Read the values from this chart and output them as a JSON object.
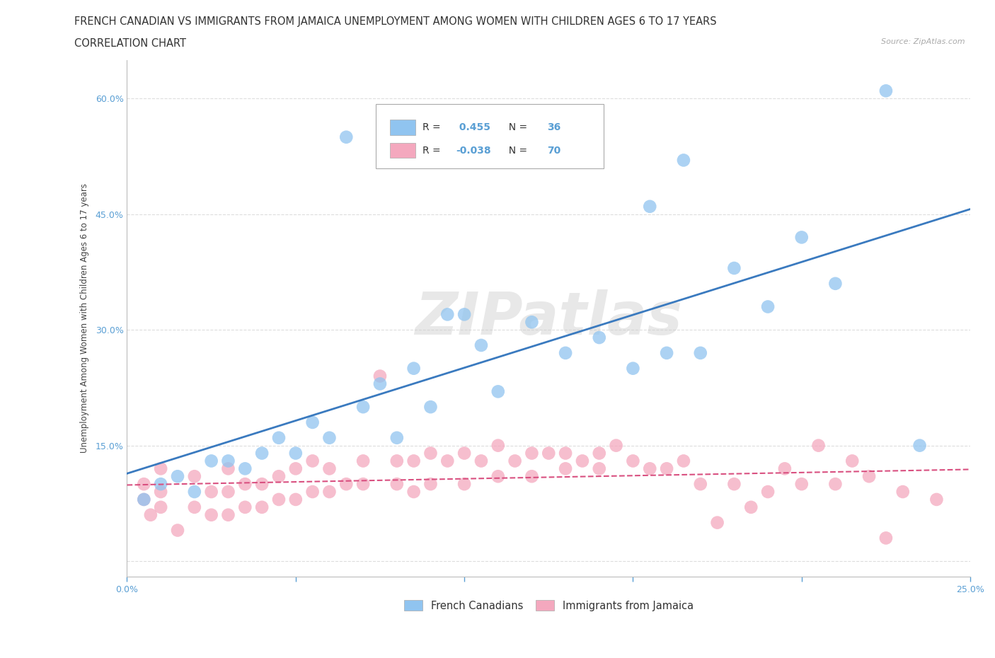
{
  "title_line1": "FRENCH CANADIAN VS IMMIGRANTS FROM JAMAICA UNEMPLOYMENT AMONG WOMEN WITH CHILDREN AGES 6 TO 17 YEARS",
  "title_line2": "CORRELATION CHART",
  "source": "Source: ZipAtlas.com",
  "ylabel_label": "Unemployment Among Women with Children Ages 6 to 17 years",
  "x_min": 0.0,
  "x_max": 0.25,
  "y_min": -0.02,
  "y_max": 0.65,
  "x_ticks": [
    0.0,
    0.05,
    0.1,
    0.15,
    0.2,
    0.25
  ],
  "x_tick_labels": [
    "0.0%",
    "",
    "",
    "",
    "",
    "25.0%"
  ],
  "y_ticks": [
    0.0,
    0.15,
    0.3,
    0.45,
    0.6
  ],
  "y_tick_labels": [
    "",
    "15.0%",
    "30.0%",
    "45.0%",
    "60.0%"
  ],
  "grid_color": "#dddddd",
  "blue_color": "#90c4f0",
  "pink_color": "#f4a8be",
  "blue_line_color": "#3a7abf",
  "pink_line_color": "#d95080",
  "tick_color": "#5a9fd4",
  "R_blue": 0.455,
  "N_blue": 36,
  "R_pink": -0.038,
  "N_pink": 70,
  "legend_label_blue": "French Canadians",
  "legend_label_pink": "Immigrants from Jamaica",
  "watermark": "ZIPatlas",
  "blue_scatter_x": [
    0.005,
    0.01,
    0.015,
    0.02,
    0.025,
    0.03,
    0.035,
    0.04,
    0.045,
    0.05,
    0.055,
    0.06,
    0.065,
    0.07,
    0.075,
    0.08,
    0.085,
    0.09,
    0.095,
    0.1,
    0.105,
    0.11,
    0.12,
    0.13,
    0.14,
    0.15,
    0.155,
    0.16,
    0.165,
    0.17,
    0.18,
    0.19,
    0.2,
    0.21,
    0.225,
    0.235
  ],
  "blue_scatter_y": [
    0.08,
    0.1,
    0.11,
    0.09,
    0.13,
    0.13,
    0.12,
    0.14,
    0.16,
    0.14,
    0.18,
    0.16,
    0.55,
    0.2,
    0.23,
    0.16,
    0.25,
    0.2,
    0.32,
    0.32,
    0.28,
    0.22,
    0.31,
    0.27,
    0.29,
    0.25,
    0.46,
    0.27,
    0.52,
    0.27,
    0.38,
    0.33,
    0.42,
    0.36,
    0.61,
    0.15
  ],
  "pink_scatter_x": [
    0.005,
    0.005,
    0.007,
    0.01,
    0.01,
    0.01,
    0.015,
    0.02,
    0.02,
    0.025,
    0.025,
    0.03,
    0.03,
    0.03,
    0.035,
    0.035,
    0.04,
    0.04,
    0.045,
    0.045,
    0.05,
    0.05,
    0.055,
    0.055,
    0.06,
    0.06,
    0.065,
    0.07,
    0.07,
    0.075,
    0.08,
    0.08,
    0.085,
    0.085,
    0.09,
    0.09,
    0.095,
    0.1,
    0.1,
    0.105,
    0.11,
    0.11,
    0.115,
    0.12,
    0.12,
    0.125,
    0.13,
    0.13,
    0.135,
    0.14,
    0.14,
    0.145,
    0.15,
    0.155,
    0.16,
    0.165,
    0.17,
    0.175,
    0.18,
    0.185,
    0.19,
    0.195,
    0.2,
    0.205,
    0.21,
    0.215,
    0.22,
    0.225,
    0.23,
    0.24
  ],
  "pink_scatter_y": [
    0.08,
    0.1,
    0.06,
    0.07,
    0.09,
    0.12,
    0.04,
    0.07,
    0.11,
    0.06,
    0.09,
    0.06,
    0.09,
    0.12,
    0.07,
    0.1,
    0.07,
    0.1,
    0.08,
    0.11,
    0.08,
    0.12,
    0.09,
    0.13,
    0.09,
    0.12,
    0.1,
    0.1,
    0.13,
    0.24,
    0.1,
    0.13,
    0.09,
    0.13,
    0.1,
    0.14,
    0.13,
    0.1,
    0.14,
    0.13,
    0.11,
    0.15,
    0.13,
    0.11,
    0.14,
    0.14,
    0.12,
    0.14,
    0.13,
    0.12,
    0.14,
    0.15,
    0.13,
    0.12,
    0.12,
    0.13,
    0.1,
    0.05,
    0.1,
    0.07,
    0.09,
    0.12,
    0.1,
    0.15,
    0.1,
    0.13,
    0.11,
    0.03,
    0.09,
    0.08
  ],
  "title_fontsize": 10.5,
  "subtitle_fontsize": 10.5,
  "axis_label_fontsize": 8.5,
  "tick_fontsize": 9,
  "legend_fontsize": 10,
  "source_fontsize": 8
}
